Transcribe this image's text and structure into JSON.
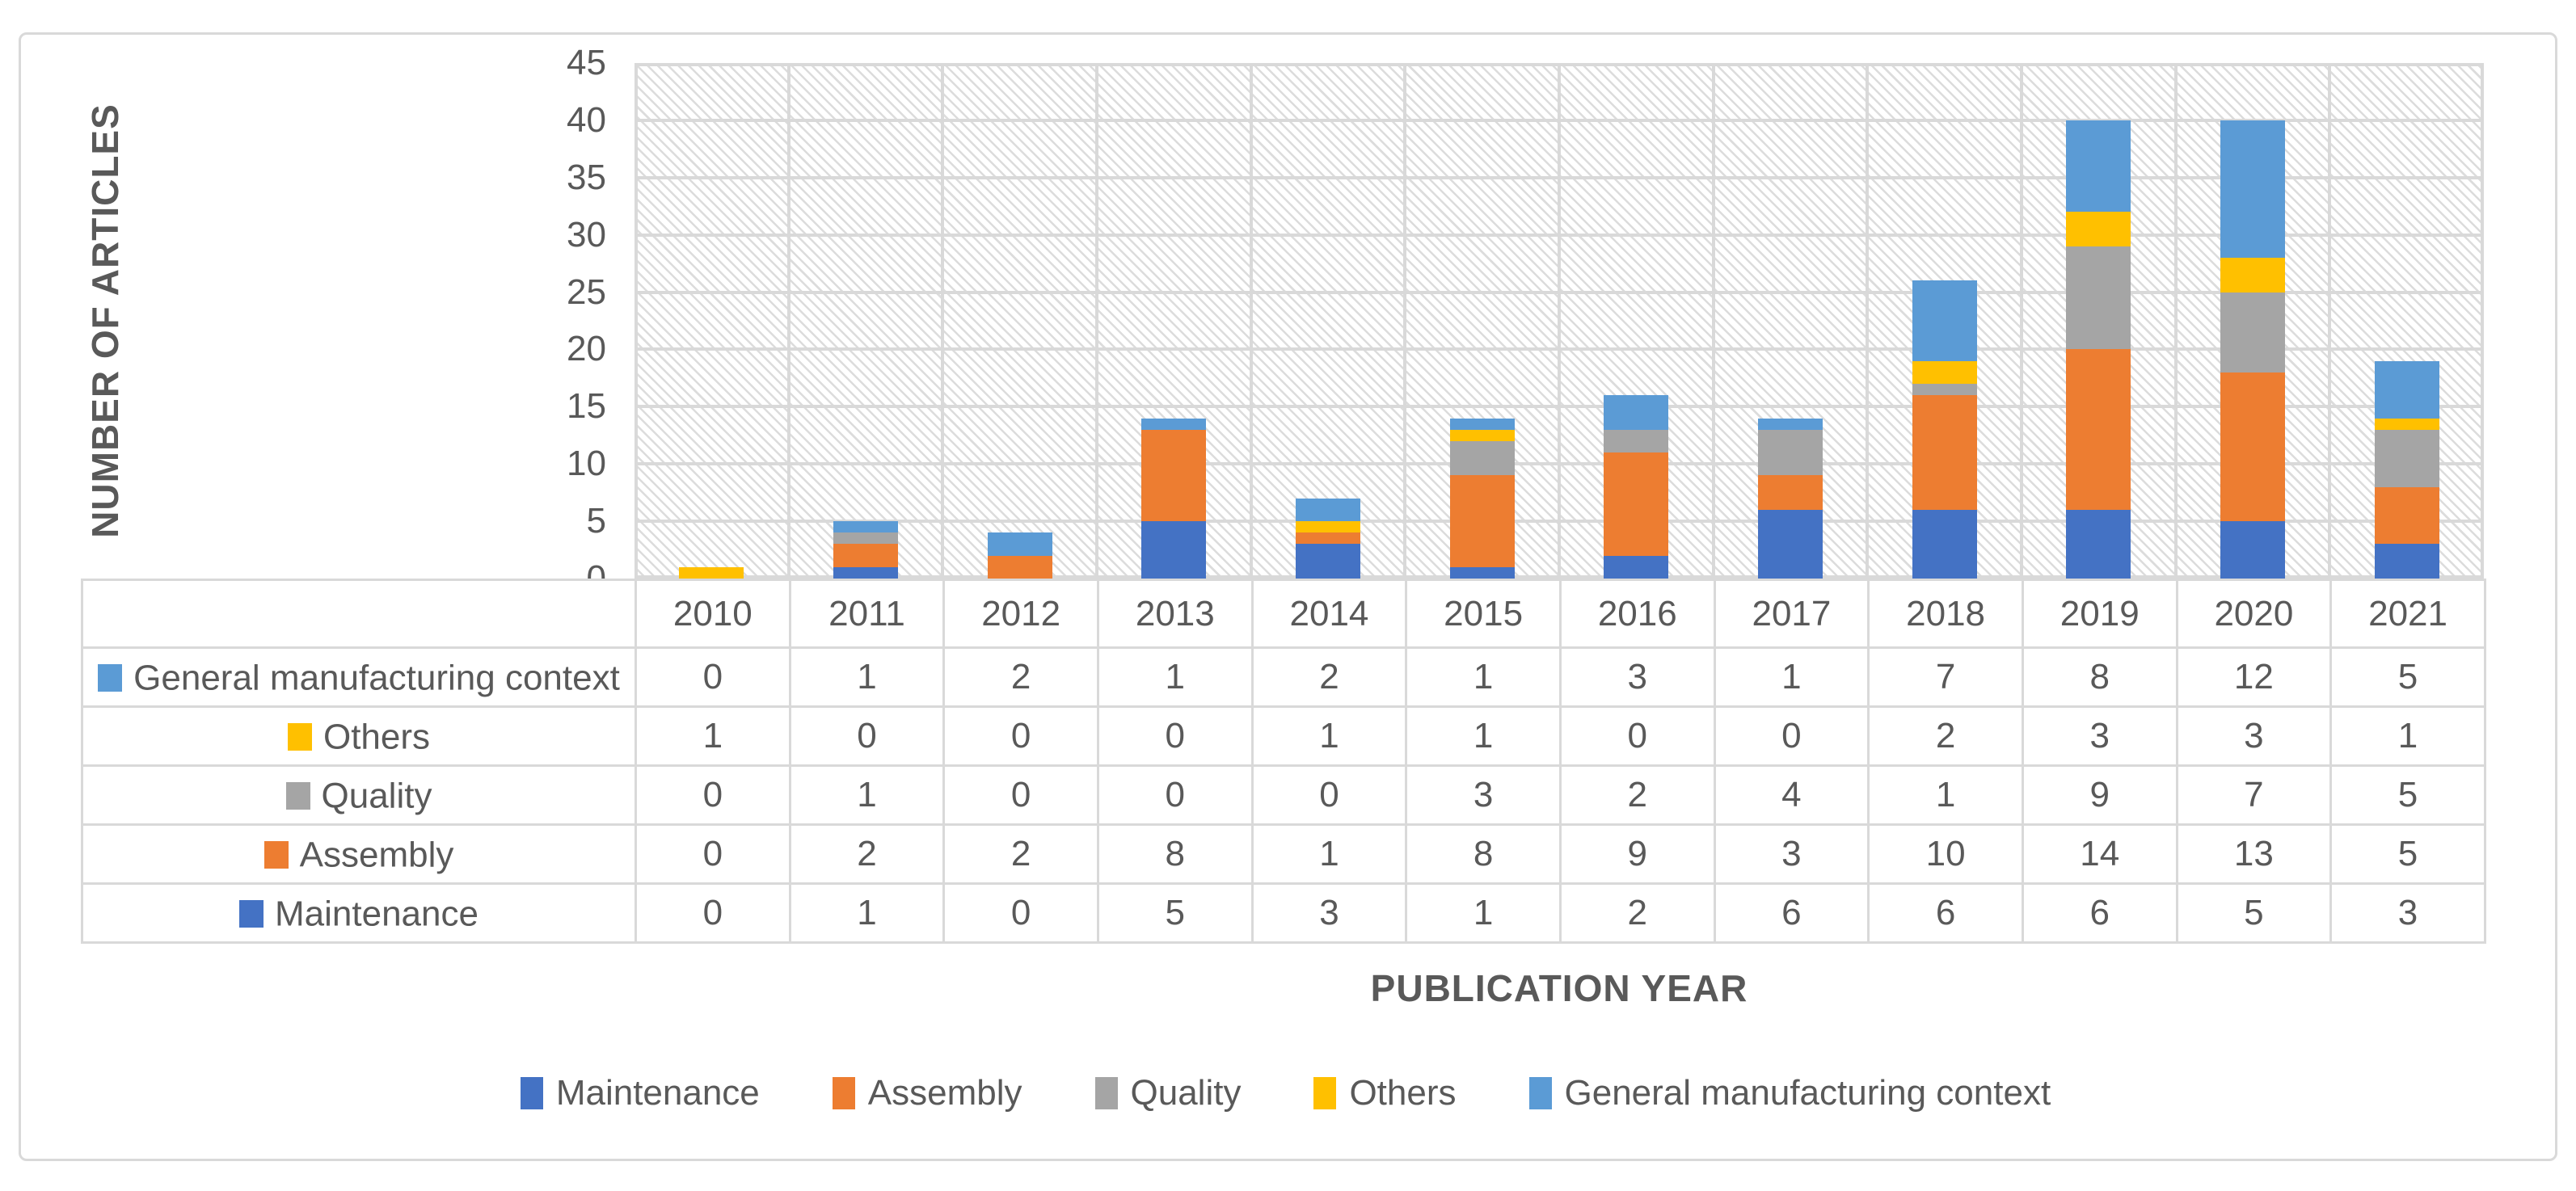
{
  "chart_data": {
    "type": "bar",
    "stacked": true,
    "title": "",
    "xlabel": "PUBLICATION YEAR",
    "ylabel": "NUMBER OF ARTICLES",
    "ylim": [
      0,
      45
    ],
    "ytick_step": 5,
    "yticks": [
      0,
      5,
      10,
      15,
      20,
      25,
      30,
      35,
      40,
      45
    ],
    "grid": "horizontal major gridlines every 5 units and vertical gridlines at category boundaries, light gray, hatched plot-area background",
    "legend_position": "bottom",
    "categories": [
      "2010",
      "2011",
      "2012",
      "2013",
      "2014",
      "2015",
      "2016",
      "2017",
      "2018",
      "2019",
      "2020",
      "2021"
    ],
    "series": [
      {
        "name": "Maintenance",
        "color": "#4472C4",
        "values": [
          0,
          1,
          0,
          5,
          3,
          1,
          2,
          6,
          6,
          6,
          5,
          3
        ]
      },
      {
        "name": "Assembly",
        "color": "#ED7D31",
        "values": [
          0,
          2,
          2,
          8,
          1,
          8,
          9,
          3,
          10,
          14,
          13,
          5
        ]
      },
      {
        "name": "Quality",
        "color": "#A5A5A5",
        "values": [
          0,
          1,
          0,
          0,
          0,
          3,
          2,
          4,
          1,
          9,
          7,
          5
        ]
      },
      {
        "name": "Others",
        "color": "#FFC000",
        "values": [
          1,
          0,
          0,
          0,
          1,
          1,
          0,
          0,
          2,
          3,
          3,
          1
        ]
      },
      {
        "name": "General manufacturing context",
        "color": "#5B9BD5",
        "values": [
          0,
          1,
          2,
          1,
          2,
          1,
          3,
          1,
          7,
          8,
          12,
          5
        ]
      }
    ],
    "table_row_order": [
      "General manufacturing context",
      "Others",
      "Quality",
      "Assembly",
      "Maintenance"
    ],
    "legend_order": [
      "Maintenance",
      "Assembly",
      "Quality",
      "Others",
      "General manufacturing context"
    ]
  },
  "colors": {
    "gridline": "#D9D9D9",
    "border": "#D9D9D9",
    "text": "#595959",
    "background": "#FFFFFF"
  }
}
